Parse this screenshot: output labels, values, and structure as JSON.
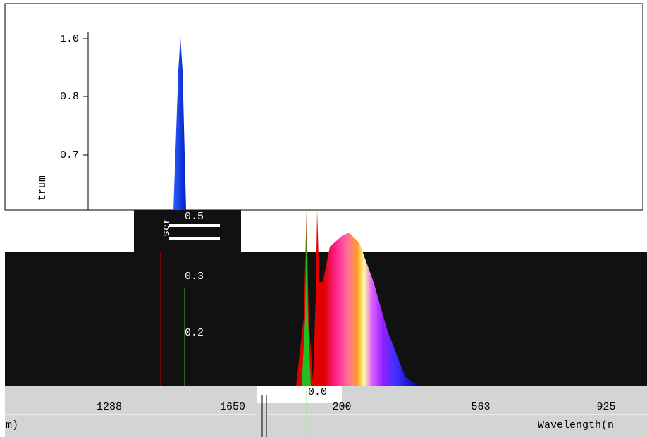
{
  "top_panel": {
    "yticks": [
      "1.0",
      "0.8",
      "0.7"
    ],
    "ylabel": "trum"
  },
  "overlay_panel": {
    "yticks": [
      "0.5",
      "0.3",
      "0.2",
      "0.0"
    ],
    "ylabel": "ser"
  },
  "bottom_left_panel": {
    "xticks": [
      "1288",
      "1650"
    ],
    "xlabel": "m)"
  },
  "bottom_right_panel": {
    "xticks": [
      "200",
      "563",
      "925"
    ],
    "xlabel": "Wavelength(n"
  }
}
